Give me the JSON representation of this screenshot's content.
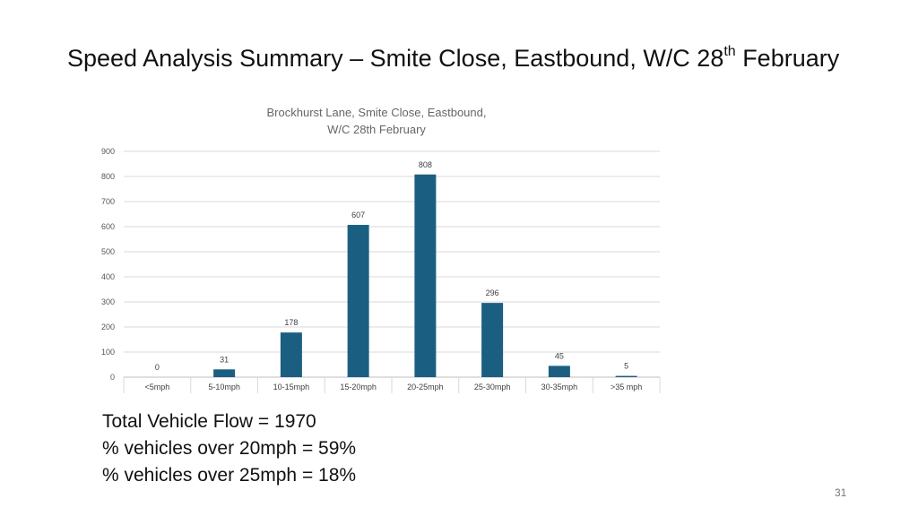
{
  "slide": {
    "title_main": "Speed Analysis Summary – Smite Close, Eastbound, W/C 28",
    "title_sup": "th",
    "title_tail": " February",
    "page_number": "31"
  },
  "stats": {
    "total_flow": "Total Vehicle Flow = 1970",
    "over_20": "% vehicles over 20mph = 59%",
    "over_25": "% vehicles over 25mph = 18%"
  },
  "chart_data": {
    "type": "bar",
    "title_lines": [
      "Brockhurst Lane, Smite Close, Eastbound,",
      "W/C 28th February"
    ],
    "categories": [
      "<5mph",
      "5-10mph",
      "10-15mph",
      "15-20mph",
      "20-25mph",
      "25-30mph",
      "30-35mph",
      ">35 mph"
    ],
    "values": [
      0,
      31,
      178,
      607,
      808,
      296,
      45,
      5
    ],
    "ylim": [
      0,
      900
    ],
    "yticks": [
      0,
      100,
      200,
      300,
      400,
      500,
      600,
      700,
      800,
      900
    ],
    "grid": true,
    "legend": "none",
    "bar_color": "#1a5f82",
    "xlabel": "",
    "ylabel": ""
  }
}
